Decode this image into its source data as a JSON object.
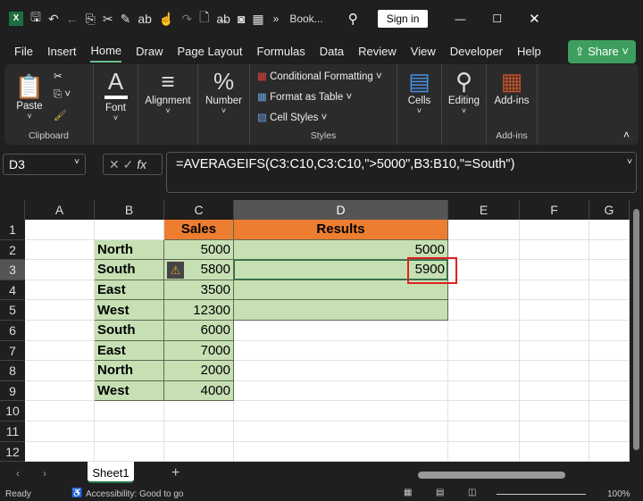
{
  "titlebar": {
    "doc_name": "Book...",
    "sign_in": "Sign in",
    "more": "»"
  },
  "menu": {
    "tabs": [
      "File",
      "Insert",
      "Home",
      "Draw",
      "Page Layout",
      "Formulas",
      "Data",
      "Review",
      "View",
      "Developer",
      "Help"
    ],
    "active": "Home",
    "share": "Share"
  },
  "ribbon": {
    "clipboard": {
      "paste": "Paste",
      "label": "Clipboard"
    },
    "font": "Font",
    "alignment": "Alignment",
    "number": "Number",
    "styles": {
      "conditional": "Conditional Formatting",
      "format_table": "Format as Table",
      "cell_styles": "Cell Styles",
      "label": "Styles"
    },
    "cells": "Cells",
    "editing": "Editing",
    "addins": {
      "button": "Add-ins",
      "label": "Add-ins"
    }
  },
  "formula_bar": {
    "name_box": "D3",
    "fx": "fx",
    "formula": "=AVERAGEIFS(C3:C10,C3:C10,\">5000\",B3:B10,\"=South\")"
  },
  "columns": [
    "A",
    "B",
    "C",
    "D",
    "E",
    "F",
    "G"
  ],
  "rows": [
    "1",
    "2",
    "3",
    "4",
    "5",
    "6",
    "7",
    "8",
    "9",
    "10",
    "11",
    "12"
  ],
  "table": {
    "header_sales": "Sales",
    "header_results": "Results",
    "regions": [
      "North",
      "South",
      "East",
      "West",
      "South",
      "East",
      "North",
      "West"
    ],
    "sales": [
      "5000",
      "5800",
      "3500",
      "12300",
      "6000",
      "7000",
      "2000",
      "4000"
    ],
    "results": [
      "5000",
      "5900",
      "",
      ""
    ]
  },
  "sheets": {
    "tabs": [
      "Sheet1"
    ],
    "add": "+"
  },
  "status": {
    "ready": "Ready",
    "accessibility": "Accessibility: Good to go",
    "zoom": "100%"
  },
  "colors": {
    "header_orange": "#ed7d31",
    "cell_green": "#c6e0b4",
    "highlight_red": "#e02020",
    "share_green": "#3d9e5f"
  }
}
